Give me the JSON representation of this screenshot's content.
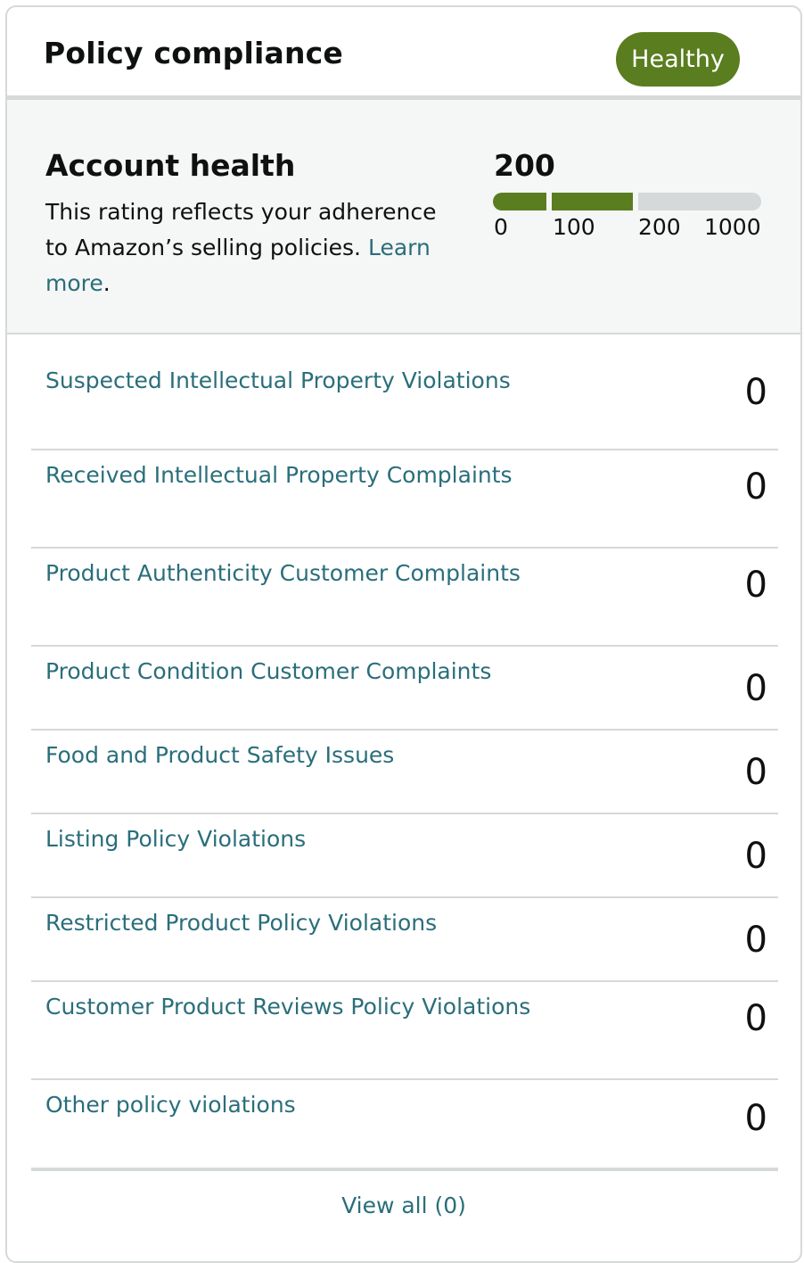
{
  "header": {
    "title": "Policy compliance",
    "status": "Healthy",
    "status_color": "#5a7d1f"
  },
  "account_health": {
    "title": "Account health",
    "description": "This rating reflects your adherence to Amazon’s selling policies.",
    "link_text": "Learn more",
    "trailing": ".",
    "score": "200",
    "scale_labels": [
      "0",
      "100",
      "200",
      "1000"
    ]
  },
  "violations": [
    {
      "label": "Suspected Intellectual Property Violations",
      "count": "0"
    },
    {
      "label": "Received Intellectual Property Complaints",
      "count": "0"
    },
    {
      "label": "Product Authenticity Customer Complaints",
      "count": "0"
    },
    {
      "label": "Product Condition Customer Complaints",
      "count": "0"
    },
    {
      "label": "Food and Product Safety Issues",
      "count": "0"
    },
    {
      "label": "Listing Policy Violations",
      "count": "0"
    },
    {
      "label": "Restricted Product Policy Violations",
      "count": "0"
    },
    {
      "label": "Customer Product Reviews Policy Violations",
      "count": "0"
    },
    {
      "label": "Other policy violations",
      "count": "0"
    }
  ],
  "footer": {
    "view_all": "View all (0)"
  },
  "colors": {
    "link": "#2a6e7b",
    "border": "#d5d9d9",
    "panel_bg": "#f5f6f6"
  }
}
